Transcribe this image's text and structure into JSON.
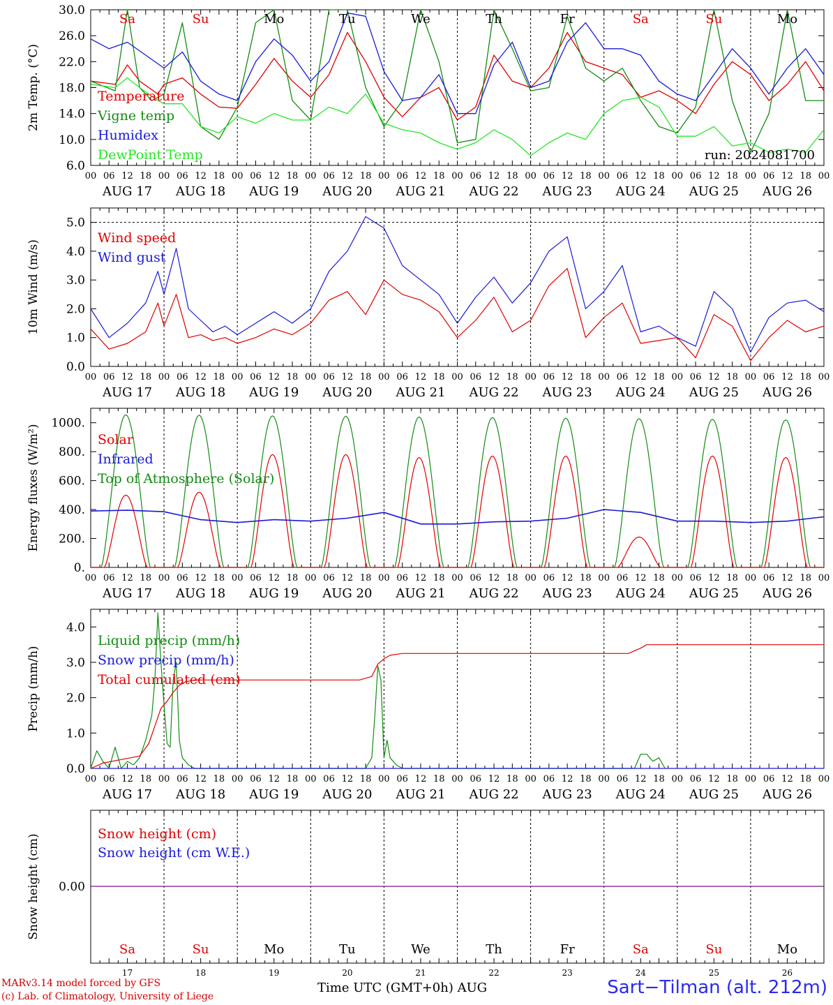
{
  "run_label": "run: 2024081700",
  "day_names": [
    "Sa",
    "Su",
    "Mo",
    "Tu",
    "We",
    "Th",
    "Fr",
    "Sa",
    "Su",
    "Mo"
  ],
  "day_name_colors": [
    "#e00000",
    "#e00000",
    "#000000",
    "#000000",
    "#000000",
    "#000000",
    "#000000",
    "#e00000",
    "#e00000",
    "#000000"
  ],
  "day_numbers": [
    "17",
    "18",
    "19",
    "20",
    "21",
    "22",
    "23",
    "24",
    "25",
    "26"
  ],
  "date_labels": [
    "AUG 17",
    "AUG 18",
    "AUG 19",
    "AUG 20",
    "AUG 21",
    "AUG 22",
    "AUG 23",
    "AUG 24",
    "AUG 25",
    "AUG 26"
  ],
  "hour_ticks": [
    "00",
    "06",
    "12",
    "18"
  ],
  "x_title": "Time UTC (GMT+0h)",
  "x_month": "AUG",
  "credit_line1": "MARv3.14 model forced by GFS",
  "credit_line2": "(c) Lab. of Climatology, University of Liege",
  "location": "Sart−Tilman (alt. 212m)",
  "chart_data": [
    {
      "type": "line",
      "ylabel": "2m Temp. (°C)",
      "ylim": [
        6,
        30
      ],
      "yticks": [
        "6.0",
        "10.0",
        "14.0",
        "18.0",
        "22.0",
        "26.0",
        "30.0"
      ],
      "x_unit": "hours since AUG 17 00 UTC",
      "series": [
        {
          "name": "Temperature",
          "color": "#e00000",
          "x": [
            0,
            8,
            12,
            16,
            22,
            24,
            30,
            36,
            42,
            48,
            54,
            60,
            66,
            72,
            78,
            84,
            90,
            96,
            102,
            108,
            114,
            120,
            126,
            132,
            138,
            144,
            150,
            156,
            162,
            168,
            174,
            180,
            186,
            192,
            198,
            204,
            210,
            216,
            222,
            228,
            234,
            240
          ],
          "y": [
            19,
            18.5,
            21.5,
            19,
            17,
            18.5,
            19.5,
            17,
            15,
            14.8,
            18.5,
            22.5,
            19,
            16.5,
            20,
            26.5,
            22,
            16.5,
            13.5,
            16.5,
            18,
            13,
            15,
            23,
            19,
            18,
            21,
            26.5,
            22,
            21,
            20,
            16.5,
            17.5,
            16,
            14,
            18.5,
            22,
            20,
            16,
            18.5,
            22,
            17.5
          ]
        },
        {
          "name": "Vigne temp",
          "color": "#138c13",
          "x": [
            0,
            8,
            12,
            16,
            20,
            24,
            30,
            36,
            42,
            48,
            54,
            60,
            66,
            72,
            78,
            84,
            90,
            96,
            102,
            108,
            114,
            120,
            126,
            132,
            138,
            144,
            150,
            156,
            162,
            168,
            174,
            180,
            186,
            192,
            198,
            204,
            210,
            216,
            222,
            228,
            234,
            240
          ],
          "y": [
            19,
            17.5,
            30,
            18,
            16,
            17,
            28,
            12,
            10,
            15,
            28,
            30,
            16,
            13,
            30,
            30,
            18,
            12,
            16,
            30,
            22,
            9.5,
            10,
            30,
            24,
            17.5,
            18,
            29,
            21,
            19,
            21,
            16,
            12,
            11,
            15,
            30,
            16,
            8,
            14,
            30,
            16,
            16
          ]
        },
        {
          "name": "Humidex",
          "color": "#1a1ad6",
          "x": [
            0,
            6,
            12,
            18,
            24,
            30,
            36,
            42,
            48,
            54,
            60,
            66,
            72,
            78,
            84,
            90,
            96,
            102,
            108,
            114,
            120,
            126,
            132,
            138,
            144,
            150,
            156,
            162,
            168,
            174,
            180,
            186,
            192,
            198,
            204,
            210,
            216,
            222,
            228,
            234,
            240
          ],
          "y": [
            25.5,
            24,
            25,
            23,
            21,
            23.5,
            19,
            17,
            16,
            22,
            25.5,
            23,
            19,
            22,
            29.5,
            29,
            20.5,
            16,
            16.5,
            20,
            14,
            14,
            21.5,
            25,
            18,
            19,
            25,
            28,
            24,
            24,
            23,
            19,
            17,
            16,
            20,
            24,
            21,
            17,
            21,
            24,
            20
          ]
        },
        {
          "name": "DewPoint Temp",
          "color": "#26e626",
          "x": [
            0,
            8,
            12,
            16,
            22,
            24,
            30,
            36,
            42,
            48,
            54,
            60,
            66,
            72,
            78,
            84,
            90,
            96,
            102,
            108,
            114,
            120,
            126,
            132,
            138,
            144,
            150,
            156,
            162,
            168,
            174,
            180,
            186,
            192,
            198,
            204,
            210,
            216,
            222,
            228,
            234,
            240
          ],
          "y": [
            18.5,
            18,
            19.5,
            18,
            16,
            15.5,
            15.5,
            12,
            11,
            13.5,
            12.5,
            14,
            13,
            13,
            15,
            14,
            17,
            12.5,
            11.5,
            11,
            9.5,
            8.5,
            9.5,
            11.5,
            10,
            7.5,
            9.5,
            11,
            10,
            14,
            16,
            16.5,
            15,
            10.5,
            10.5,
            12,
            9,
            9.5,
            8,
            8.5,
            8,
            11.5
          ]
        }
      ]
    },
    {
      "type": "line",
      "ylabel": "10m Wind (m/s)",
      "ylim": [
        0,
        5.5
      ],
      "yticks": [
        "0.0",
        "1.0",
        "2.0",
        "3.0",
        "4.0",
        "5.0"
      ],
      "reference_line": 5.0,
      "series": [
        {
          "name": "Wind speed",
          "color": "#e00000",
          "x": [
            0,
            6,
            12,
            18,
            22,
            24,
            28,
            32,
            36,
            40,
            44,
            48,
            54,
            60,
            66,
            72,
            78,
            84,
            90,
            96,
            102,
            108,
            114,
            120,
            126,
            132,
            138,
            144,
            150,
            156,
            162,
            168,
            174,
            180,
            186,
            192,
            198,
            204,
            210,
            216,
            222,
            228,
            234,
            240
          ],
          "y": [
            1.3,
            0.6,
            0.8,
            1.2,
            2.2,
            1.4,
            2.5,
            1.0,
            1.1,
            0.9,
            1.0,
            0.8,
            1.0,
            1.3,
            1.1,
            1.5,
            2.3,
            2.6,
            1.8,
            3.0,
            2.5,
            2.3,
            1.9,
            1.0,
            1.6,
            2.4,
            1.2,
            1.6,
            2.8,
            3.4,
            1.0,
            1.7,
            2.2,
            0.8,
            0.9,
            1.0,
            0.3,
            1.8,
            1.4,
            0.2,
            1.0,
            1.6,
            1.2,
            1.4
          ]
        },
        {
          "name": "Wind gust",
          "color": "#1a1ad6",
          "x": [
            0,
            6,
            12,
            18,
            22,
            24,
            28,
            32,
            36,
            40,
            44,
            48,
            54,
            60,
            66,
            72,
            78,
            84,
            90,
            96,
            102,
            108,
            114,
            120,
            126,
            132,
            138,
            144,
            150,
            156,
            162,
            168,
            174,
            180,
            186,
            192,
            198,
            204,
            210,
            216,
            222,
            228,
            234,
            240
          ],
          "y": [
            2.0,
            1.0,
            1.5,
            2.2,
            3.3,
            2.5,
            4.1,
            2.0,
            1.6,
            1.2,
            1.4,
            1.1,
            1.5,
            1.9,
            1.5,
            2.0,
            3.3,
            4.0,
            5.2,
            4.8,
            3.5,
            3.0,
            2.5,
            1.5,
            2.4,
            3.1,
            2.2,
            2.9,
            4.0,
            4.5,
            2.0,
            2.6,
            3.5,
            1.2,
            1.4,
            1.0,
            0.7,
            2.6,
            2.0,
            0.5,
            1.7,
            2.2,
            2.3,
            1.9
          ]
        }
      ]
    },
    {
      "type": "line",
      "ylabel": "Energy fluxes (W/m²)",
      "ylim": [
        0,
        1100
      ],
      "yticks": [
        "0.",
        "200.",
        "400.",
        "600.",
        "800.",
        "1000."
      ],
      "series": [
        {
          "name": "Solar",
          "color": "#e00000",
          "peaks": [
            500,
            520,
            780,
            780,
            760,
            770,
            770,
            210,
            770,
            760
          ]
        },
        {
          "name": "Infrared",
          "color": "#1a1ad6",
          "x": [
            0,
            12,
            24,
            36,
            48,
            60,
            72,
            84,
            96,
            108,
            120,
            132,
            144,
            156,
            168,
            180,
            192,
            204,
            216,
            228,
            240
          ],
          "y": [
            390,
            395,
            385,
            330,
            310,
            330,
            320,
            340,
            380,
            300,
            300,
            315,
            320,
            340,
            400,
            380,
            320,
            320,
            310,
            320,
            350
          ]
        },
        {
          "name": "Top of Atmosphere (Solar)",
          "color": "#138c13",
          "peaks": [
            1055,
            1052,
            1048,
            1045,
            1040,
            1036,
            1032,
            1028,
            1024,
            1020
          ]
        }
      ]
    },
    {
      "type": "line",
      "ylabel": "Precip (mm/h)",
      "ylim": [
        0,
        4.5
      ],
      "yticks": [
        "0.0",
        "1.0",
        "2.0",
        "3.0",
        "4.0"
      ],
      "series": [
        {
          "name": "Liquid precip (mm/h)",
          "color": "#138c13",
          "x": [
            0,
            2,
            4,
            6,
            8,
            10,
            12,
            14,
            16,
            18,
            20,
            21,
            22,
            23,
            24,
            25,
            26,
            27,
            28,
            29,
            30,
            32,
            34,
            36,
            40,
            90,
            92,
            93,
            94,
            95,
            96,
            97,
            98,
            100,
            102,
            104,
            178,
            180,
            182,
            184,
            186,
            188
          ],
          "y": [
            0,
            0.5,
            0.2,
            0,
            0.6,
            0,
            0.2,
            0.1,
            0.3,
            0.8,
            1.5,
            2.5,
            4.4,
            3.0,
            1.8,
            0.7,
            0.6,
            2.5,
            3.0,
            0.8,
            0.3,
            0.1,
            0,
            0,
            0,
            0,
            0.3,
            1.5,
            2.9,
            2.5,
            0.3,
            0.8,
            0.3,
            0.1,
            0,
            0,
            0,
            0.4,
            0.4,
            0.2,
            0.3,
            0
          ]
        },
        {
          "name": "Snow precip (mm/h)",
          "color": "#1a1ad6",
          "x": [
            0,
            240
          ],
          "y": [
            0,
            0
          ]
        },
        {
          "name": "Total cumulated (cm)",
          "color": "#e00000",
          "x": [
            0,
            4,
            10,
            16,
            19,
            21,
            23,
            25,
            27,
            29,
            31,
            34,
            48,
            72,
            88,
            92,
            94,
            96,
            98,
            102,
            120,
            144,
            168,
            176,
            180,
            182,
            240
          ],
          "y": [
            0,
            0.15,
            0.25,
            0.35,
            0.7,
            1.2,
            1.7,
            1.9,
            2.15,
            2.35,
            2.45,
            2.5,
            2.5,
            2.5,
            2.5,
            2.6,
            2.95,
            3.1,
            3.2,
            3.25,
            3.25,
            3.25,
            3.25,
            3.25,
            3.4,
            3.5,
            3.5
          ]
        }
      ]
    },
    {
      "type": "line",
      "ylabel": "Snow height (cm)",
      "yticks": [
        "0.00"
      ],
      "series": [
        {
          "name": "Snow height (cm)",
          "color": "#e00000",
          "x": [
            0,
            240
          ],
          "y": [
            0,
            0
          ]
        },
        {
          "name": "Snow height (cm W.E.)",
          "color": "#1a1ad6",
          "x": [
            0,
            240
          ],
          "y": [
            0,
            0
          ]
        }
      ]
    }
  ]
}
